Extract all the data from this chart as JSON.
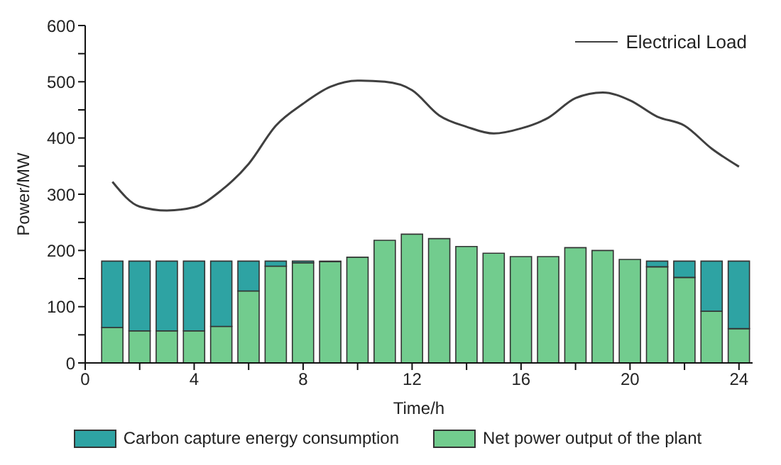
{
  "chart_data": {
    "type": "bar",
    "xlabel": "Time/h",
    "ylabel": "Power/MW",
    "x": [
      1,
      2,
      3,
      4,
      5,
      6,
      7,
      8,
      9,
      10,
      11,
      12,
      13,
      14,
      15,
      16,
      17,
      18,
      19,
      20,
      21,
      22,
      23,
      24
    ],
    "stacked": true,
    "series": [
      {
        "name": "Net power output of the plant",
        "color": "#72cc8e",
        "values": [
          63,
          57,
          57,
          57,
          65,
          128,
          172,
          178,
          180,
          188,
          218,
          229,
          221,
          207,
          195,
          189,
          189,
          205,
          200,
          184,
          171,
          152,
          92,
          61
        ]
      },
      {
        "name": "Carbon capture energy consumption",
        "color": "#2ea3a3",
        "values": [
          118,
          124,
          124,
          124,
          116,
          53,
          9,
          3,
          1,
          0,
          0,
          0,
          0,
          0,
          0,
          0,
          0,
          0,
          0,
          0,
          10,
          29,
          89,
          120
        ]
      },
      {
        "name": "Electrical Load",
        "type": "line",
        "color": "#404040",
        "values": [
          322,
          278,
          271,
          277,
          307,
          354,
          422,
          461,
          491,
          502,
          500,
          485,
          440,
          420,
          408,
          417,
          436,
          471,
          481,
          467,
          438,
          422,
          381,
          349
        ]
      }
    ],
    "xlim": [
      0,
      24.5
    ],
    "xticks": [
      0,
      {
        "value": 2,
        "label": null
      },
      4,
      {
        "value": 6,
        "label": null
      },
      8,
      {
        "value": 10,
        "label": null
      },
      12,
      {
        "value": 14,
        "label": null
      },
      16,
      {
        "value": 18,
        "label": null
      },
      20,
      {
        "value": 22,
        "label": null
      },
      24
    ],
    "ylim": [
      0,
      600
    ],
    "yticks": [
      0,
      {
        "value": 50,
        "label": null
      },
      100,
      {
        "value": 150,
        "label": null
      },
      200,
      {
        "value": 250,
        "label": null
      },
      300,
      {
        "value": 350,
        "label": null
      },
      400,
      {
        "value": 450,
        "label": null
      },
      500,
      {
        "value": 550,
        "label": null
      },
      600
    ],
    "legend": "bottom",
    "marker": "none",
    "line_style": "solid"
  }
}
